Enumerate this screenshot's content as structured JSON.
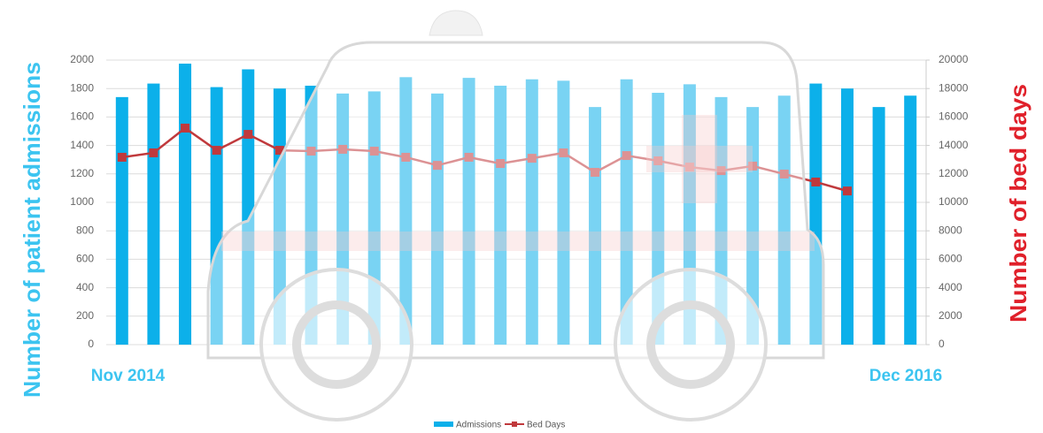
{
  "chart_data": {
    "type": "bar_line",
    "categories": [
      "Nov 2014",
      null,
      null,
      null,
      null,
      null,
      null,
      null,
      null,
      null,
      null,
      null,
      null,
      null,
      null,
      null,
      null,
      null,
      null,
      null,
      null,
      null,
      null,
      null,
      null,
      "Dec 2016"
    ],
    "series": [
      {
        "name": "Admissions",
        "type": "bar",
        "color": "#0cb0ea",
        "axis": "y",
        "values": [
          1740,
          1835,
          1975,
          1810,
          1935,
          1800,
          1820,
          1765,
          1780,
          1880,
          1765,
          1875,
          1820,
          1865,
          1855,
          1670,
          1865,
          1770,
          1830,
          1740,
          1670,
          1750,
          1835,
          1800,
          1670,
          1750
        ]
      },
      {
        "name": "Bed Days",
        "type": "line",
        "color": "#c0393c",
        "axis": "y2",
        "values": [
          13170,
          13480,
          15220,
          13660,
          14780,
          13660,
          13600,
          13730,
          13600,
          13170,
          12600,
          13170,
          12730,
          13100,
          13480,
          12110,
          13290,
          12920,
          12480,
          12230,
          12550,
          11990,
          11430,
          10800,
          null,
          null
        ]
      }
    ],
    "ylabel": "Number of patient admissions",
    "y2label": "Number of bed days",
    "ylim": [
      0,
      2000
    ],
    "yticks": [
      0,
      200,
      400,
      600,
      800,
      1000,
      1200,
      1400,
      1600,
      1800,
      2000
    ],
    "y2lim": [
      0,
      20000
    ],
    "y2ticks": [
      0,
      2000,
      4000,
      6000,
      8000,
      10000,
      12000,
      14000,
      16000,
      18000,
      20000
    ],
    "grid": true,
    "legend": "bottom"
  }
}
